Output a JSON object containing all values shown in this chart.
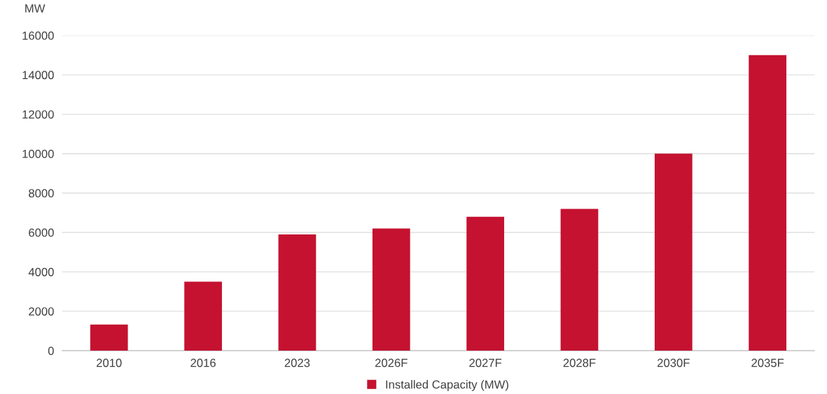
{
  "chart_data": {
    "type": "bar",
    "ylabel": "MW",
    "categories": [
      "2010",
      "2016",
      "2023",
      "2026F",
      "2027F",
      "2028F",
      "2030F",
      "2035F"
    ],
    "series": [
      {
        "name": "Installed Capacity (MW)",
        "color": "#c41230",
        "values": [
          1330,
          3500,
          5900,
          6200,
          6800,
          7200,
          10000,
          15000
        ]
      }
    ],
    "ylim": [
      0,
      16000
    ],
    "yticks": [
      0,
      2000,
      4000,
      6000,
      8000,
      10000,
      12000,
      14000,
      16000
    ],
    "grid": "y",
    "legend": "bottom"
  }
}
